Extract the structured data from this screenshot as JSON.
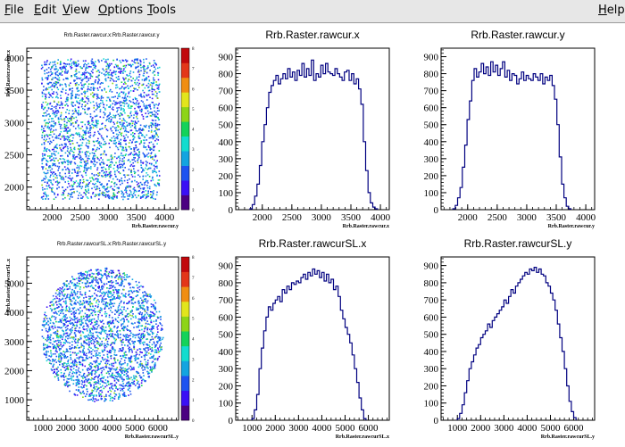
{
  "menu": {
    "items": [
      "File",
      "Edit",
      "View",
      "Options",
      "Tools"
    ],
    "underline": [
      "F",
      "E",
      "V",
      "O",
      "T"
    ],
    "help": "Help",
    "help_underline": "H"
  },
  "colors": {
    "menubar_bg": "#e7e7e7",
    "histogram_line": "#000080",
    "palette": [
      "#4b0082",
      "#3a0ff5",
      "#1d53f0",
      "#13a4e0",
      "#13dccf",
      "#14d25a",
      "#8dd418",
      "#e2e51d",
      "#f08e13",
      "#e3361a",
      "#c1080c"
    ]
  },
  "chart_data": [
    {
      "id": "2d-rawcur",
      "type": "heatmap",
      "title": "Rrb.Raster.rawcur.x:Rrb.Raster.rawcur.y",
      "xlabel": "Rrb.Raster.rawcur.y",
      "ylabel": "Rrb.Raster.rawcur.x",
      "xlim": [
        1550,
        4250
      ],
      "ylim": [
        1650,
        4150
      ],
      "xticks": [
        2000,
        2500,
        3000,
        3500,
        4000
      ],
      "xtick_labels": [
        "2000",
        "2500",
        "3000",
        "3500",
        "4000"
      ],
      "yticks": [
        2000,
        2500,
        3000,
        3500,
        4000
      ],
      "ytick_labels": [
        "2000",
        "2500",
        "3000",
        "3500",
        "4000"
      ],
      "shape": "square",
      "region_x": [
        1800,
        3900
      ],
      "region_y": [
        1820,
        4000
      ],
      "zlim": [
        0,
        8
      ],
      "zticks": [
        0,
        1,
        2,
        3,
        4,
        5,
        6,
        7,
        8
      ]
    },
    {
      "id": "h-rawcur-x",
      "type": "histogram",
      "title": "Rrb.Raster.rawcur.x",
      "xlabel": "Rrb.Raster.rawcur.x",
      "xlim": [
        1550,
        4150
      ],
      "ylim": [
        0,
        950
      ],
      "xticks": [
        2000,
        2500,
        3000,
        3500,
        4000
      ],
      "xtick_labels": [
        "2000",
        "2500",
        "3000",
        "3500",
        "4000"
      ],
      "yticks": [
        0,
        100,
        200,
        300,
        400,
        500,
        600,
        700,
        800,
        900
      ],
      "ytick_labels": [
        "0",
        "100",
        "200",
        "300",
        "400",
        "500",
        "600",
        "700",
        "800",
        "900"
      ],
      "bin_start": 1790,
      "bin_width": 40,
      "values": [
        5,
        30,
        80,
        150,
        260,
        400,
        500,
        600,
        690,
        730,
        760,
        790,
        740,
        770,
        800,
        770,
        830,
        780,
        810,
        760,
        820,
        790,
        860,
        780,
        830,
        790,
        880,
        760,
        800,
        780,
        850,
        800,
        860,
        810,
        800,
        790,
        830,
        800,
        780,
        760,
        810,
        820,
        760,
        800,
        740,
        770,
        710,
        620,
        400,
        230,
        100,
        40,
        15,
        5
      ]
    },
    {
      "id": "h-rawcur-y",
      "type": "histogram",
      "title": "Rrb.Raster.rawcur.y",
      "xlabel": "Rrb.Raster.rawcur.y",
      "xlim": [
        1550,
        4150
      ],
      "ylim": [
        0,
        950
      ],
      "xticks": [
        2000,
        2500,
        3000,
        3500,
        4000
      ],
      "xtick_labels": [
        "2000",
        "2500",
        "3000",
        "3500",
        "4000"
      ],
      "yticks": [
        0,
        100,
        200,
        300,
        400,
        500,
        600,
        700,
        800,
        900
      ],
      "ytick_labels": [
        "0",
        "100",
        "200",
        "300",
        "400",
        "500",
        "600",
        "700",
        "800",
        "900"
      ],
      "bin_start": 1750,
      "bin_width": 40,
      "values": [
        5,
        25,
        70,
        130,
        250,
        380,
        530,
        640,
        760,
        830,
        780,
        810,
        860,
        800,
        840,
        790,
        870,
        810,
        850,
        790,
        830,
        870,
        780,
        820,
        760,
        800,
        790,
        740,
        770,
        810,
        760,
        790,
        770,
        760,
        800,
        780,
        760,
        800,
        740,
        780,
        760,
        790,
        730,
        650,
        500,
        310,
        150,
        70,
        20,
        5
      ]
    },
    {
      "id": "2d-rawcursl",
      "type": "heatmap",
      "title": "Rrb.Raster.rawcurSL.x:Rrb.Raster.rawcurSL.y",
      "xlabel": "Rrb.Raster.rawcurSL.y",
      "ylabel": "Rrb.Raster.rawcurSL.x",
      "xlim": [
        300,
        6900
      ],
      "ylim": [
        300,
        5900
      ],
      "xticks": [
        1000,
        2000,
        3000,
        4000,
        5000,
        6000
      ],
      "xtick_labels": [
        "1000",
        "2000",
        "3000",
        "4000",
        "5000",
        "6000"
      ],
      "yticks": [
        1000,
        2000,
        3000,
        4000,
        5000
      ],
      "ytick_labels": [
        "1000",
        "2000",
        "3000",
        "4000",
        "5000"
      ],
      "shape": "ellipse",
      "region_x": [
        900,
        6200
      ],
      "region_y": [
        950,
        5550
      ],
      "zlim": [
        0,
        8
      ],
      "zticks": [
        0,
        1,
        2,
        3,
        4,
        5,
        6,
        7,
        8
      ]
    },
    {
      "id": "h-rawcursl-x",
      "type": "histogram",
      "title": "Rrb.Raster.rawcurSL.x",
      "xlabel": "Rrb.Raster.rawcurSL.x",
      "xlim": [
        300,
        6900
      ],
      "ylim": [
        0,
        950
      ],
      "xticks": [
        1000,
        2000,
        3000,
        4000,
        5000,
        6000
      ],
      "xtick_labels": [
        "1000",
        "2000",
        "3000",
        "4000",
        "5000",
        "6000"
      ],
      "yticks": [
        0,
        100,
        200,
        300,
        400,
        500,
        600,
        700,
        800,
        900
      ],
      "ytick_labels": [
        "0",
        "100",
        "200",
        "300",
        "400",
        "500",
        "600",
        "700",
        "800",
        "900"
      ],
      "bin_start": 1000,
      "bin_width": 100,
      "values": [
        10,
        60,
        150,
        300,
        420,
        520,
        600,
        660,
        640,
        680,
        700,
        720,
        690,
        760,
        740,
        780,
        760,
        800,
        790,
        810,
        800,
        830,
        850,
        820,
        860,
        840,
        880,
        850,
        870,
        830,
        860,
        810,
        850,
        800,
        820,
        760,
        780,
        720,
        640,
        590,
        540,
        500,
        450,
        380,
        300,
        220,
        130,
        60,
        10
      ]
    },
    {
      "id": "h-rawcursl-y",
      "type": "histogram",
      "title": "Rrb.Raster.rawcurSL.y",
      "xlabel": "Rrb.Raster.rawcurSL.y",
      "xlim": [
        300,
        6900
      ],
      "ylim": [
        0,
        950
      ],
      "xticks": [
        1000,
        2000,
        3000,
        4000,
        5000,
        6000
      ],
      "xtick_labels": [
        "1000",
        "2000",
        "3000",
        "4000",
        "5000",
        "6000"
      ],
      "yticks": [
        0,
        100,
        200,
        300,
        400,
        500,
        600,
        700,
        800,
        900
      ],
      "ytick_labels": [
        "0",
        "100",
        "200",
        "300",
        "400",
        "500",
        "600",
        "700",
        "800",
        "900"
      ],
      "bin_start": 1000,
      "bin_width": 100,
      "values": [
        10,
        40,
        90,
        160,
        230,
        300,
        340,
        380,
        420,
        440,
        480,
        500,
        520,
        560,
        540,
        580,
        600,
        620,
        640,
        660,
        700,
        680,
        720,
        760,
        740,
        780,
        800,
        820,
        840,
        860,
        850,
        880,
        870,
        890,
        860,
        880,
        850,
        840,
        800,
        780,
        740,
        700,
        640,
        560,
        480,
        400,
        300,
        200,
        110,
        50,
        15
      ]
    }
  ]
}
